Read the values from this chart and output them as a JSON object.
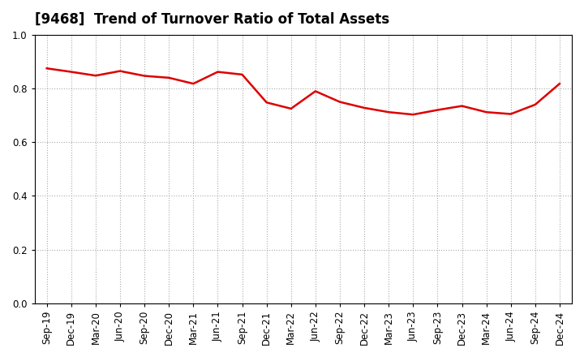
{
  "title": "[9468]  Trend of Turnover Ratio of Total Assets",
  "x_labels": [
    "Sep-19",
    "Dec-19",
    "Mar-20",
    "Jun-20",
    "Sep-20",
    "Dec-20",
    "Mar-21",
    "Jun-21",
    "Sep-21",
    "Dec-21",
    "Mar-22",
    "Jun-22",
    "Sep-22",
    "Dec-22",
    "Mar-23",
    "Jun-23",
    "Sep-23",
    "Dec-23",
    "Mar-24",
    "Jun-24",
    "Sep-24",
    "Dec-24"
  ],
  "y_values": [
    0.875,
    0.862,
    0.848,
    0.865,
    0.847,
    0.84,
    0.818,
    0.862,
    0.852,
    0.748,
    0.725,
    0.79,
    0.75,
    0.728,
    0.712,
    0.703,
    0.72,
    0.735,
    0.712,
    0.705,
    0.74,
    0.818
  ],
  "line_color": "#DD0000",
  "line_width": 1.8,
  "ylim": [
    0.0,
    1.0
  ],
  "yticks": [
    0.0,
    0.2,
    0.4,
    0.6,
    0.8,
    1.0
  ],
  "grid_color": "#aaaaaa",
  "background_color": "#ffffff",
  "title_fontsize": 12,
  "tick_fontsize": 8.5
}
